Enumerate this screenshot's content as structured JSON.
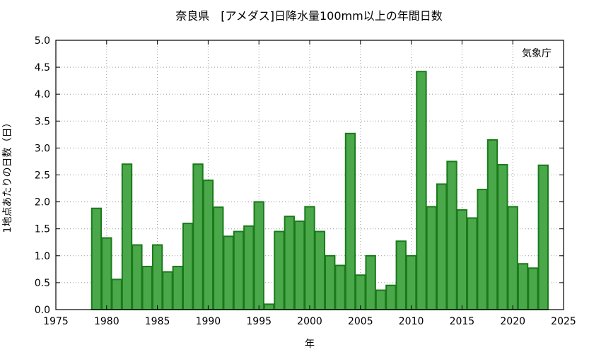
{
  "chart_data": {
    "type": "bar",
    "title": "奈良県　[アメダス]日降水量100mm以上の年間日数",
    "xlabel": "年",
    "ylabel": "1地点あたりの日数（日）",
    "credit": "気象庁",
    "xlim": [
      1975,
      2025
    ],
    "ylim": [
      0,
      5.0
    ],
    "x_ticks": [
      "1975",
      "1980",
      "1985",
      "1990",
      "1995",
      "2000",
      "2005",
      "2010",
      "2015",
      "2020",
      "2025"
    ],
    "y_ticks": [
      "0.0",
      "0.5",
      "1.0",
      "1.5",
      "2.0",
      "2.5",
      "3.0",
      "3.5",
      "4.0",
      "4.5",
      "5.0"
    ],
    "grid": true,
    "bar_color": "#4aa84a",
    "bar_edge_color": "#1a7a1a",
    "x": [
      1979,
      1980,
      1981,
      1982,
      1983,
      1984,
      1985,
      1986,
      1987,
      1988,
      1989,
      1990,
      1991,
      1992,
      1993,
      1994,
      1995,
      1996,
      1997,
      1998,
      1999,
      2000,
      2001,
      2002,
      2003,
      2004,
      2005,
      2006,
      2007,
      2008,
      2009,
      2010,
      2011,
      2012,
      2013,
      2014,
      2015,
      2016,
      2017,
      2018,
      2019,
      2020,
      2021,
      2022,
      2023
    ],
    "values": [
      1.88,
      1.33,
      0.56,
      2.7,
      1.2,
      0.8,
      1.2,
      0.7,
      0.8,
      1.6,
      2.7,
      2.4,
      1.9,
      1.36,
      1.45,
      1.55,
      2.0,
      0.1,
      1.45,
      1.73,
      1.64,
      1.91,
      1.45,
      1.0,
      0.82,
      3.27,
      0.64,
      1.0,
      0.36,
      0.45,
      1.27,
      1.0,
      4.42,
      1.91,
      2.33,
      2.75,
      1.85,
      1.7,
      2.23,
      3.15,
      2.69,
      1.91,
      0.85,
      0.77,
      2.68
    ]
  }
}
